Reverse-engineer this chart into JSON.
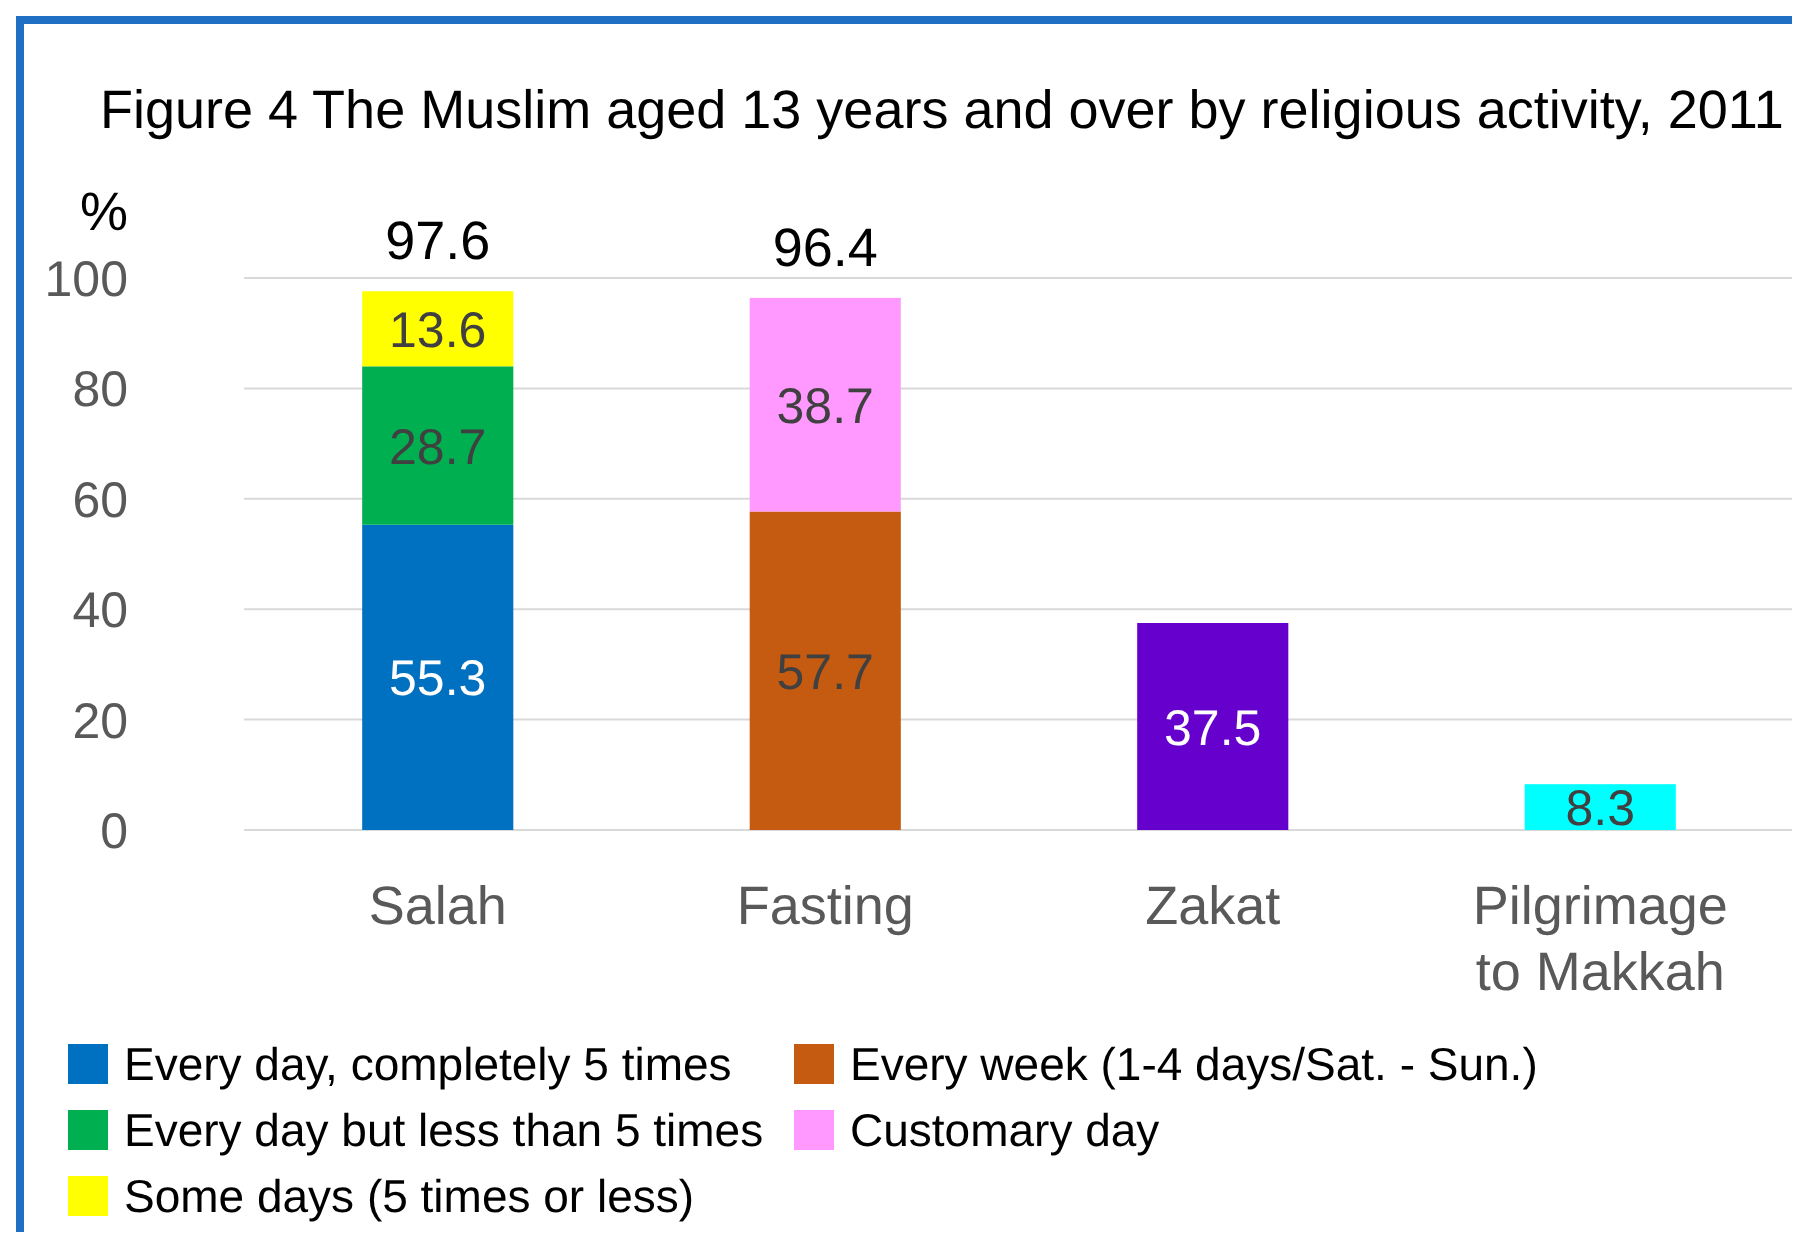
{
  "chart_data": {
    "type": "bar",
    "title": "Figure 4 The Muslim aged 13 years and over by religious activity, 2011",
    "ylabel": "%",
    "categories": [
      "Salah",
      "Fasting",
      "Zakat",
      "Pilgrimage to Makkah"
    ],
    "stacked": true,
    "series": [
      {
        "name": "Every day, completely 5 times",
        "color": "#0070c0",
        "values": [
          55.3,
          null,
          null,
          null
        ]
      },
      {
        "name": "Every day but less than 5 times",
        "color": "#00b050",
        "values": [
          28.7,
          null,
          null,
          null
        ]
      },
      {
        "name": "Some days (5 times or less)",
        "color": "#ffff00",
        "values": [
          13.6,
          null,
          null,
          null
        ]
      },
      {
        "name": "Every week (1-4 days/Sat. - Sun.)",
        "color": "#c55a11",
        "values": [
          null,
          57.7,
          null,
          null
        ]
      },
      {
        "name": "Customary day",
        "color": "#ff99ff",
        "values": [
          null,
          38.7,
          null,
          null
        ]
      },
      {
        "color": "#6600cc",
        "values": [
          null,
          null,
          37.5,
          null
        ]
      },
      {
        "color": "#00ffff",
        "values": [
          null,
          null,
          null,
          8.3
        ]
      }
    ],
    "totals": [
      "97.6",
      "96.4",
      null,
      null
    ],
    "data_labels": true,
    "ylim": [
      0,
      100
    ],
    "yticks": [
      0,
      20,
      40,
      60,
      80,
      100
    ],
    "grid": "y",
    "legend": "bottom"
  }
}
